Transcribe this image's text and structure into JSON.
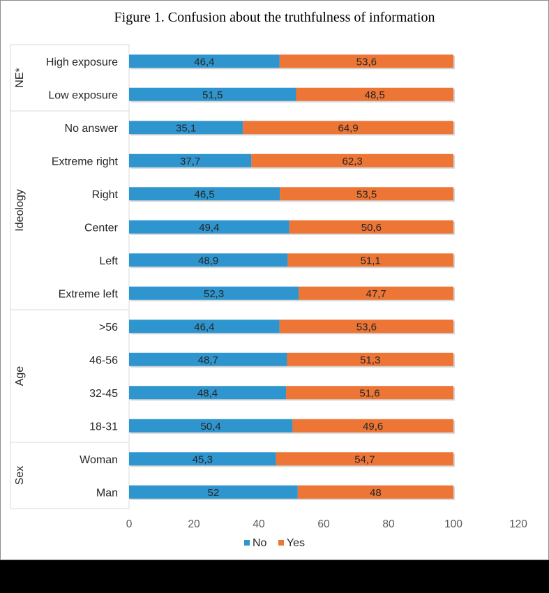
{
  "chart_data": {
    "type": "bar",
    "orientation": "horizontal",
    "stacked": true,
    "title": "Figure 1. Confusion about the truthfulness of information",
    "xlim": [
      0,
      120
    ],
    "xticks": [
      "0",
      "20",
      "40",
      "60",
      "80",
      "100",
      "120"
    ],
    "groups": [
      {
        "label": "NE*",
        "categories": [
          "High exposure",
          "Low exposure"
        ]
      },
      {
        "label": "Ideology",
        "categories": [
          "No answer",
          "Extreme right",
          "Right",
          "Center",
          "Left",
          "Extreme left"
        ]
      },
      {
        "label": "Age",
        "categories": [
          ">56",
          "46-56",
          "32-45",
          "18-31"
        ]
      },
      {
        "label": "Sex",
        "categories": [
          "Woman",
          "Man"
        ]
      }
    ],
    "categories": [
      "High exposure",
      "Low exposure",
      "No answer",
      "Extreme right",
      "Right",
      "Center",
      "Left",
      "Extreme left",
      ">56",
      "46-56",
      "32-45",
      "18-31",
      "Woman",
      "Man"
    ],
    "series": [
      {
        "name": "No",
        "color": "#2e95cf",
        "values": [
          46.4,
          51.5,
          35.1,
          37.7,
          46.5,
          49.4,
          48.9,
          52.3,
          46.4,
          48.7,
          48.4,
          50.4,
          45.3,
          52
        ],
        "labels": [
          "46,4",
          "51,5",
          "35,1",
          "37,7",
          "46,5",
          "49,4",
          "48,9",
          "52,3",
          "46,4",
          "48,7",
          "48,4",
          "50,4",
          "45,3",
          "52"
        ]
      },
      {
        "name": "Yes",
        "color": "#ed7535",
        "values": [
          53.6,
          48.5,
          64.9,
          62.3,
          53.5,
          50.6,
          51.1,
          47.7,
          53.6,
          51.3,
          51.6,
          49.6,
          54.7,
          48
        ],
        "labels": [
          "53,6",
          "48,5",
          "64,9",
          "62,3",
          "53,5",
          "50,6",
          "51,1",
          "47,7",
          "53,6",
          "51,3",
          "51,6",
          "49,6",
          "54,7",
          "48"
        ]
      }
    ],
    "legend": {
      "position": "bottom"
    },
    "grid": false
  }
}
